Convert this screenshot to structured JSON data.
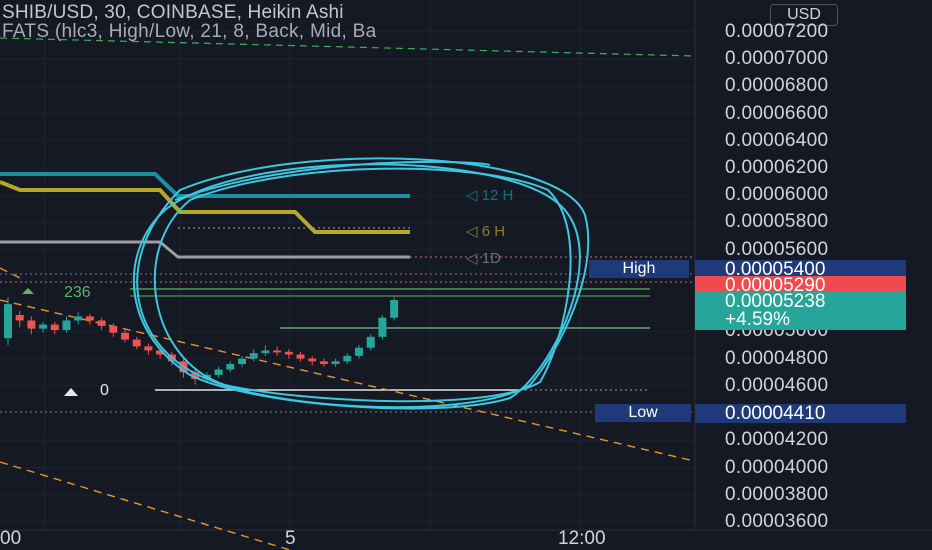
{
  "header": {
    "title": "SHIB/USD, 30, COINBASE, Heikin Ashi",
    "indicator": "FATS (hlc3, High/Low, 21, 8, Back, Mid, Ba"
  },
  "currency": "USD",
  "price_scale": {
    "ticks": [
      "0.00007200",
      "0.00007000",
      "0.00006800",
      "0.00006600",
      "0.00006400",
      "0.00006200",
      "0.00006000",
      "0.00005800",
      "0.00005600",
      "0.00005000",
      "0.00004800",
      "0.00004600",
      "0.00004200",
      "0.00004000",
      "0.00003800",
      "0.00003600"
    ]
  },
  "tags": {
    "high_label": "High",
    "high_value": "0.00005400",
    "last_value": "0.00005290",
    "current_value": "0.00005238",
    "current_change": "+4.59%",
    "low_label": "Low",
    "low_value": "0.00004410"
  },
  "time_axis": {
    "labels": [
      "00",
      "5",
      "12:00"
    ]
  },
  "fib_labels": {
    "upper": "236",
    "lower": "0"
  },
  "tf_labels": {
    "h12": "12 H",
    "h6": "6 H",
    "d1": "1D"
  },
  "colors": {
    "background": "#151924",
    "bull": "#26a69a",
    "bear": "#ef5350",
    "annotation": "#3ec6e0",
    "gold": "#b5a828",
    "teal_line": "#1f8ea0",
    "grey_line": "#9e9e9e",
    "trend": "#e8962c",
    "tag_blue": "#1e3a78",
    "tag_red": "#f04a4f",
    "tag_teal": "#26a69a"
  },
  "chart_data": {
    "type": "candlestick",
    "title": "SHIB/USD, 30, COINBASE, Heikin Ashi",
    "ylim": [
      3.6e-05,
      7.25e-05
    ],
    "y_ticks": [
      7.2e-05,
      7e-05,
      6.8e-05,
      6.6e-05,
      6.4e-05,
      6.2e-05,
      6e-05,
      5.8e-05,
      5.6e-05,
      5e-05,
      4.8e-05,
      4.6e-05,
      4.2e-05,
      4e-05,
      3.8e-05,
      3.6e-05
    ],
    "candles": [
      {
        "o": 4.95e-05,
        "c": 5.2e-05,
        "h": 5.25e-05,
        "l": 4.9e-05
      },
      {
        "o": 5.12e-05,
        "c": 5.08e-05,
        "h": 5.15e-05,
        "l": 5.03e-05
      },
      {
        "o": 5.08e-05,
        "c": 5.02e-05,
        "h": 5.11e-05,
        "l": 4.98e-05
      },
      {
        "o": 5.02e-05,
        "c": 5.05e-05,
        "h": 5.07e-05,
        "l": 4.99e-05
      },
      {
        "o": 5.05e-05,
        "c": 5.01e-05,
        "h": 5.07e-05,
        "l": 4.98e-05
      },
      {
        "o": 5.01e-05,
        "c": 5.08e-05,
        "h": 5.11e-05,
        "l": 4.99e-05
      },
      {
        "o": 5.08e-05,
        "c": 5.11e-05,
        "h": 5.14e-05,
        "l": 5.05e-05
      },
      {
        "o": 5.11e-05,
        "c": 5.08e-05,
        "h": 5.13e-05,
        "l": 5.05e-05
      },
      {
        "o": 5.08e-05,
        "c": 5.04e-05,
        "h": 5.1e-05,
        "l": 5.01e-05
      },
      {
        "o": 5.04e-05,
        "c": 4.99e-05,
        "h": 5.06e-05,
        "l": 4.96e-05
      },
      {
        "o": 4.99e-05,
        "c": 4.94e-05,
        "h": 5.01e-05,
        "l": 4.92e-05
      },
      {
        "o": 4.94e-05,
        "c": 4.89e-05,
        "h": 4.96e-05,
        "l": 4.87e-05
      },
      {
        "o": 4.89e-05,
        "c": 4.86e-05,
        "h": 4.91e-05,
        "l": 4.83e-05
      },
      {
        "o": 4.86e-05,
        "c": 4.83e-05,
        "h": 4.88e-05,
        "l": 4.8e-05
      },
      {
        "o": 4.83e-05,
        "c": 4.78e-05,
        "h": 4.85e-05,
        "l": 4.75e-05
      },
      {
        "o": 4.78e-05,
        "c": 4.7e-05,
        "h": 4.8e-05,
        "l": 4.66e-05
      },
      {
        "o": 4.7e-05,
        "c": 4.65e-05,
        "h": 4.72e-05,
        "l": 4.61e-05
      },
      {
        "o": 4.65e-05,
        "c": 4.68e-05,
        "h": 4.7e-05,
        "l": 4.63e-05
      },
      {
        "o": 4.68e-05,
        "c": 4.72e-05,
        "h": 4.74e-05,
        "l": 4.66e-05
      },
      {
        "o": 4.72e-05,
        "c": 4.76e-05,
        "h": 4.78e-05,
        "l": 4.7e-05
      },
      {
        "o": 4.76e-05,
        "c": 4.8e-05,
        "h": 4.82e-05,
        "l": 4.74e-05
      },
      {
        "o": 4.8e-05,
        "c": 4.84e-05,
        "h": 4.87e-05,
        "l": 4.78e-05
      },
      {
        "o": 4.84e-05,
        "c": 4.86e-05,
        "h": 4.9e-05,
        "l": 4.82e-05
      },
      {
        "o": 4.86e-05,
        "c": 4.85e-05,
        "h": 4.89e-05,
        "l": 4.82e-05
      },
      {
        "o": 4.85e-05,
        "c": 4.83e-05,
        "h": 4.87e-05,
        "l": 4.8e-05
      },
      {
        "o": 4.83e-05,
        "c": 4.8e-05,
        "h": 4.85e-05,
        "l": 4.78e-05
      },
      {
        "o": 4.8e-05,
        "c": 4.78e-05,
        "h": 4.82e-05,
        "l": 4.75e-05
      },
      {
        "o": 4.78e-05,
        "c": 4.76e-05,
        "h": 4.8e-05,
        "l": 4.74e-05
      },
      {
        "o": 4.76e-05,
        "c": 4.78e-05,
        "h": 4.8e-05,
        "l": 4.74e-05
      },
      {
        "o": 4.78e-05,
        "c": 4.82e-05,
        "h": 4.84e-05,
        "l": 4.76e-05
      },
      {
        "o": 4.82e-05,
        "c": 4.88e-05,
        "h": 4.9e-05,
        "l": 4.8e-05
      },
      {
        "o": 4.88e-05,
        "c": 4.96e-05,
        "h": 4.98e-05,
        "l": 4.86e-05
      },
      {
        "o": 4.96e-05,
        "c": 5.1e-05,
        "h": 5.12e-05,
        "l": 4.94e-05
      },
      {
        "o": 5.1e-05,
        "c": 5.23e-05,
        "h": 5.25e-05,
        "l": 5.08e-05
      }
    ],
    "levels": {
      "high": 5.4e-05,
      "last": 5.29e-05,
      "current": 5.238e-05,
      "low": 4.41e-05
    }
  }
}
